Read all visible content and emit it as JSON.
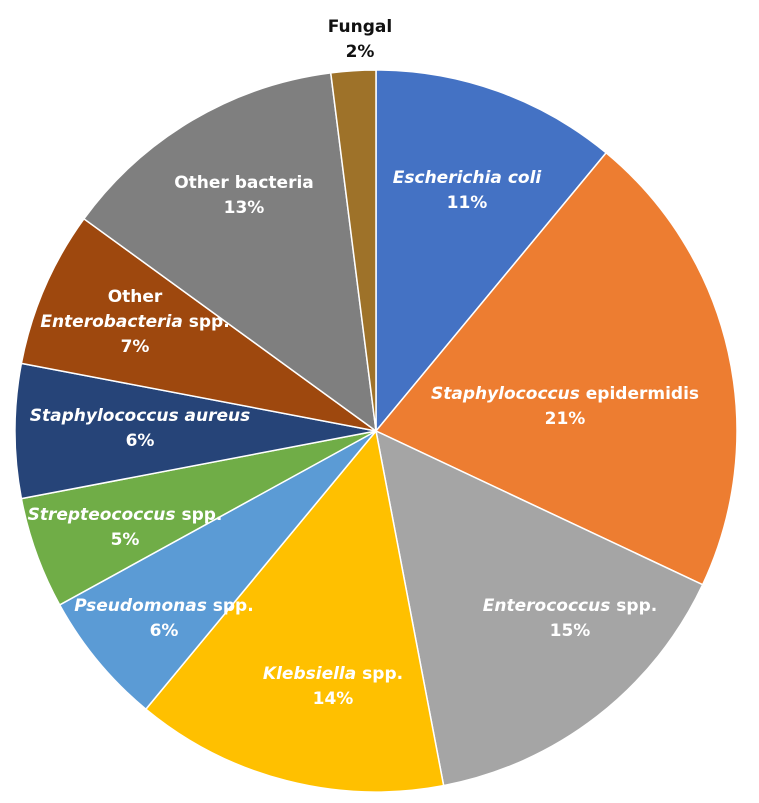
{
  "chart_data": {
    "type": "pie",
    "title": "",
    "start_angle_deg": 0,
    "direction": "clockwise",
    "slices": [
      {
        "name_italic": "Escherichia coli",
        "name_plain": "",
        "value": 11,
        "pct_label": "11%",
        "color": "#4472C4",
        "label_color": "#ffffff"
      },
      {
        "name_italic": "Staphylococcus",
        "name_plain": " epidermidis",
        "value": 21,
        "pct_label": "21%",
        "color": "#ED7D31",
        "label_color": "#ffffff"
      },
      {
        "name_italic": "Enterococcus",
        "name_plain": " spp.",
        "value": 15,
        "pct_label": "15%",
        "color": "#A5A5A5",
        "label_color": "#ffffff"
      },
      {
        "name_italic": "Klebsiella",
        "name_plain": " spp.",
        "value": 14,
        "pct_label": "14%",
        "color": "#FFC000",
        "label_color": "#ffffff"
      },
      {
        "name_italic": "Pseudomonas",
        "name_plain": " spp.",
        "value": 6,
        "pct_label": "6%",
        "color": "#5B9BD5",
        "label_color": "#ffffff"
      },
      {
        "name_italic": "Strepteococcus",
        "name_plain": " spp.",
        "value": 5,
        "pct_label": "5%",
        "color": "#70AD47",
        "label_color": "#ffffff"
      },
      {
        "name_italic": "Staphylococcus aureus",
        "name_plain": "",
        "value": 6,
        "pct_label": "6%",
        "color": "#264478",
        "label_color": "#ffffff"
      },
      {
        "name_pre": "Other",
        "name_italic": "Enterobacteria",
        "name_plain": " spp.",
        "value": 7,
        "pct_label": "7%",
        "color": "#9E480E",
        "label_color": "#ffffff"
      },
      {
        "name_italic": "",
        "name_plain": "Other bacteria",
        "value": 13,
        "pct_label": "13%",
        "color": "#7F7F7F",
        "label_color": "#ffffff"
      },
      {
        "name_italic": "",
        "name_plain": "Fungal",
        "value": 2,
        "pct_label": "2%",
        "color": "#9E7229",
        "label_color": "#111111"
      }
    ]
  }
}
